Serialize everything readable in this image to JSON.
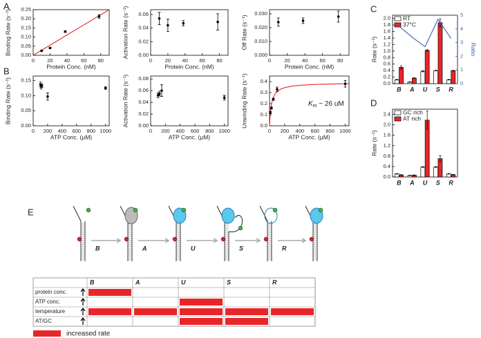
{
  "panels": [
    "A",
    "B",
    "C",
    "D",
    "E"
  ],
  "chart_data": [
    {
      "type": "scatter",
      "y_label": "Binding Rate (s⁻¹)",
      "x_label": "Protein Conc. (nM)",
      "xlim": [
        0,
        90
      ],
      "xticks": [
        0,
        20,
        40,
        60,
        80
      ],
      "ylim": [
        0,
        0.25
      ],
      "yticks": [
        {
          "value": 0,
          "label": "0.00"
        },
        0.05,
        {
          "value": 0.1,
          "label": "0.10"
        },
        0.15,
        {
          "value": 0.2,
          "label": "0.20"
        },
        0.25
      ],
      "series": [
        {
          "type": "line",
          "color": "#e8262a",
          "x": [
            0,
            90
          ],
          "values": [
            0,
            0.25
          ]
        },
        {
          "type": "scatter",
          "color": "#000000",
          "x": [
            10,
            20,
            38,
            78
          ],
          "values": [
            0.025,
            0.04,
            0.13,
            0.213
          ],
          "errors": [
            0.003,
            0.003,
            0.005,
            0.01
          ]
        }
      ]
    },
    {
      "type": "scatter",
      "y_label": "Activation Rate (s⁻¹)",
      "x_label": "Protein Conc. (nM)",
      "xlim": [
        0,
        90
      ],
      "xticks": [
        0,
        20,
        40,
        60,
        80
      ],
      "ylim": [
        0,
        0.067
      ],
      "yticks": [
        {
          "value": 0,
          "label": "0.00"
        },
        0.02,
        0.04,
        0.06
      ],
      "series": [
        {
          "type": "scatter",
          "color": "#000000",
          "x": [
            10,
            20,
            38,
            78
          ],
          "values": [
            0.054,
            0.044,
            0.047,
            0.049
          ],
          "errors": [
            0.009,
            0.009,
            0.004,
            0.012
          ]
        }
      ]
    },
    {
      "type": "scatter",
      "y_label": "Off Rate (s⁻¹)",
      "x_label": "Protein Conc. (nM)",
      "xlim": [
        0,
        90
      ],
      "xticks": [
        0,
        20,
        40,
        60,
        80
      ],
      "ylim": [
        0,
        0.033
      ],
      "yticks": [
        {
          "value": 0,
          "label": "0.000"
        },
        {
          "value": 0.01,
          "label": "0.010"
        },
        {
          "value": 0.02,
          "label": "0.020"
        },
        {
          "value": 0.03,
          "label": "0.030"
        }
      ],
      "series": [
        {
          "type": "scatter",
          "color": "#000000",
          "x": [
            10,
            38,
            78
          ],
          "values": [
            0.024,
            0.025,
            0.028
          ],
          "errors": [
            0.003,
            0.002,
            0.004
          ]
        }
      ]
    },
    {
      "type": "scatter",
      "y_label": "Binding Rate (s⁻¹)",
      "x_label": "ATP Conc. (µM)",
      "xlim": [
        0,
        1050
      ],
      "xticks": [
        0,
        200,
        400,
        600,
        800,
        1000
      ],
      "ylim": [
        0,
        0.165
      ],
      "yticks": [
        {
          "value": 0,
          "label": "0.00"
        },
        0.05,
        {
          "value": 0.1,
          "label": "0.10"
        },
        0.15
      ],
      "series": [
        {
          "type": "scatter",
          "color": "#000000",
          "x": [
            100,
            110,
            120,
            200,
            1000
          ],
          "values": [
            0.137,
            0.13,
            0.133,
            0.097,
            0.125
          ],
          "errors": [
            0.008,
            0.008,
            0.006,
            0.012,
            0.004
          ]
        }
      ]
    },
    {
      "type": "scatter",
      "y_label": "Activation Rate (s⁻¹)",
      "x_label": "ATP Conc. (µM)",
      "xlim": [
        0,
        1050
      ],
      "xticks": [
        0,
        200,
        400,
        600,
        800,
        1000
      ],
      "ylim": [
        0,
        0.085
      ],
      "yticks": [
        {
          "value": 0,
          "label": "0.00"
        },
        0.02,
        0.04,
        0.06,
        0.08
      ],
      "series": [
        {
          "type": "scatter",
          "color": "#000000",
          "x": [
            100,
            120,
            150,
            1000
          ],
          "values": [
            0.052,
            0.055,
            0.06,
            0.048
          ],
          "errors": [
            0.004,
            0.004,
            0.01,
            0.004
          ]
        }
      ]
    },
    {
      "type": "scatter",
      "y_label": "Unwinding Rate (s⁻¹)",
      "x_label": "ATP Conc. (µM)",
      "xlim": [
        0,
        1050
      ],
      "xticks": [
        0,
        200,
        400,
        600,
        800,
        1000
      ],
      "ylim": [
        0,
        0.45
      ],
      "yticks": [
        {
          "value": 0,
          "label": "0.0"
        },
        0.1,
        0.2,
        0.3,
        0.4
      ],
      "annotation": {
        "symbol": "K",
        "subscript": "m",
        "text": " ~ 26 uM"
      },
      "series": [
        {
          "type": "line",
          "color": "#e8262a",
          "x": [
            0,
            10,
            20,
            30,
            50,
            75,
            100,
            150,
            200,
            300,
            400,
            600,
            800,
            1000,
            1050
          ],
          "values": [
            0,
            0.108,
            0.17,
            0.209,
            0.257,
            0.29,
            0.31,
            0.332,
            0.345,
            0.359,
            0.366,
            0.374,
            0.378,
            0.38,
            0.381
          ]
        },
        {
          "type": "scatter",
          "color": "#000000",
          "x": [
            10,
            25,
            50,
            100,
            1000
          ],
          "values": [
            0.12,
            0.16,
            0.24,
            0.33,
            0.38
          ],
          "errors": [
            0.01,
            0.01,
            0.01,
            0.02,
            0.03
          ]
        }
      ]
    },
    {
      "type": "bar",
      "y_label": "Rate (s⁻¹)",
      "y2_label": "Ratio",
      "y2_color": "#3b5fb0",
      "categories": [
        "B",
        "A",
        "U",
        "S",
        "R"
      ],
      "ylim": [
        0,
        2.1
      ],
      "yticks": [
        {
          "value": 0,
          "label": "0.0"
        },
        0.2,
        0.4,
        0.6,
        0.8,
        {
          "value": 1,
          "label": "1.0"
        },
        1.2,
        1.4,
        1.6,
        1.8,
        {
          "value": 2,
          "label": "2.0"
        }
      ],
      "y2lim": [
        0,
        5
      ],
      "y2ticks": [
        0,
        1,
        2,
        3,
        4,
        5
      ],
      "series": [
        {
          "name": "RT",
          "color": "#ffffff",
          "values": [
            0.12,
            0.05,
            0.38,
            0.4,
            0.12
          ],
          "errors": [
            0.01,
            0.01,
            0.02,
            0.01,
            0.01
          ]
        },
        {
          "name": "37°C",
          "color": "#e8262a",
          "values": [
            0.5,
            0.17,
            1.02,
            1.87,
            0.4
          ],
          "errors": [
            0.05,
            0.01,
            0.02,
            0.12,
            0.01
          ]
        },
        {
          "type": "line",
          "axis": "y2",
          "color": "#3b5fb0",
          "values": [
            4.2,
            3.4,
            2.7,
            4.7,
            3.3
          ]
        }
      ]
    },
    {
      "type": "bar",
      "y_label": "Rate (s⁻¹)",
      "categories": [
        "B",
        "A",
        "U",
        "S",
        "R"
      ],
      "ylim": [
        0,
        2.6
      ],
      "yticks": [
        {
          "value": 0,
          "label": "0.0"
        },
        0.4,
        0.8,
        1.2,
        1.6,
        {
          "value": 2,
          "label": "2.0"
        },
        2.4
      ],
      "series": [
        {
          "name": "GC rich",
          "color": "#ffffff",
          "values": [
            0.12,
            0.06,
            0.38,
            0.38,
            0.12
          ],
          "errors": [
            0.01,
            0.01,
            0.02,
            0.02,
            0.01
          ]
        },
        {
          "name": "AT rich",
          "color": "#e8262a",
          "values": [
            0.08,
            0.07,
            2.18,
            0.7,
            0.09
          ],
          "errors": [
            0.01,
            0.01,
            0.35,
            0.12,
            0.01
          ]
        }
      ]
    }
  ],
  "diagram": {
    "steps": [
      "B",
      "A",
      "U",
      "S",
      "R"
    ]
  },
  "table": {
    "columns": [
      "B",
      "A",
      "U",
      "S",
      "R"
    ],
    "color": "#e8262a",
    "rows": [
      {
        "label": "protein conc.",
        "increased": [
          true,
          false,
          false,
          false,
          false
        ]
      },
      {
        "label": "ATP conc.",
        "increased": [
          false,
          false,
          true,
          false,
          false
        ]
      },
      {
        "label": "temperature",
        "increased": [
          true,
          true,
          true,
          true,
          true
        ]
      },
      {
        "label": "AT/GC",
        "increased": [
          false,
          false,
          true,
          true,
          false
        ]
      }
    ]
  },
  "legend": {
    "label": "increased rate",
    "color": "#e8262a"
  }
}
